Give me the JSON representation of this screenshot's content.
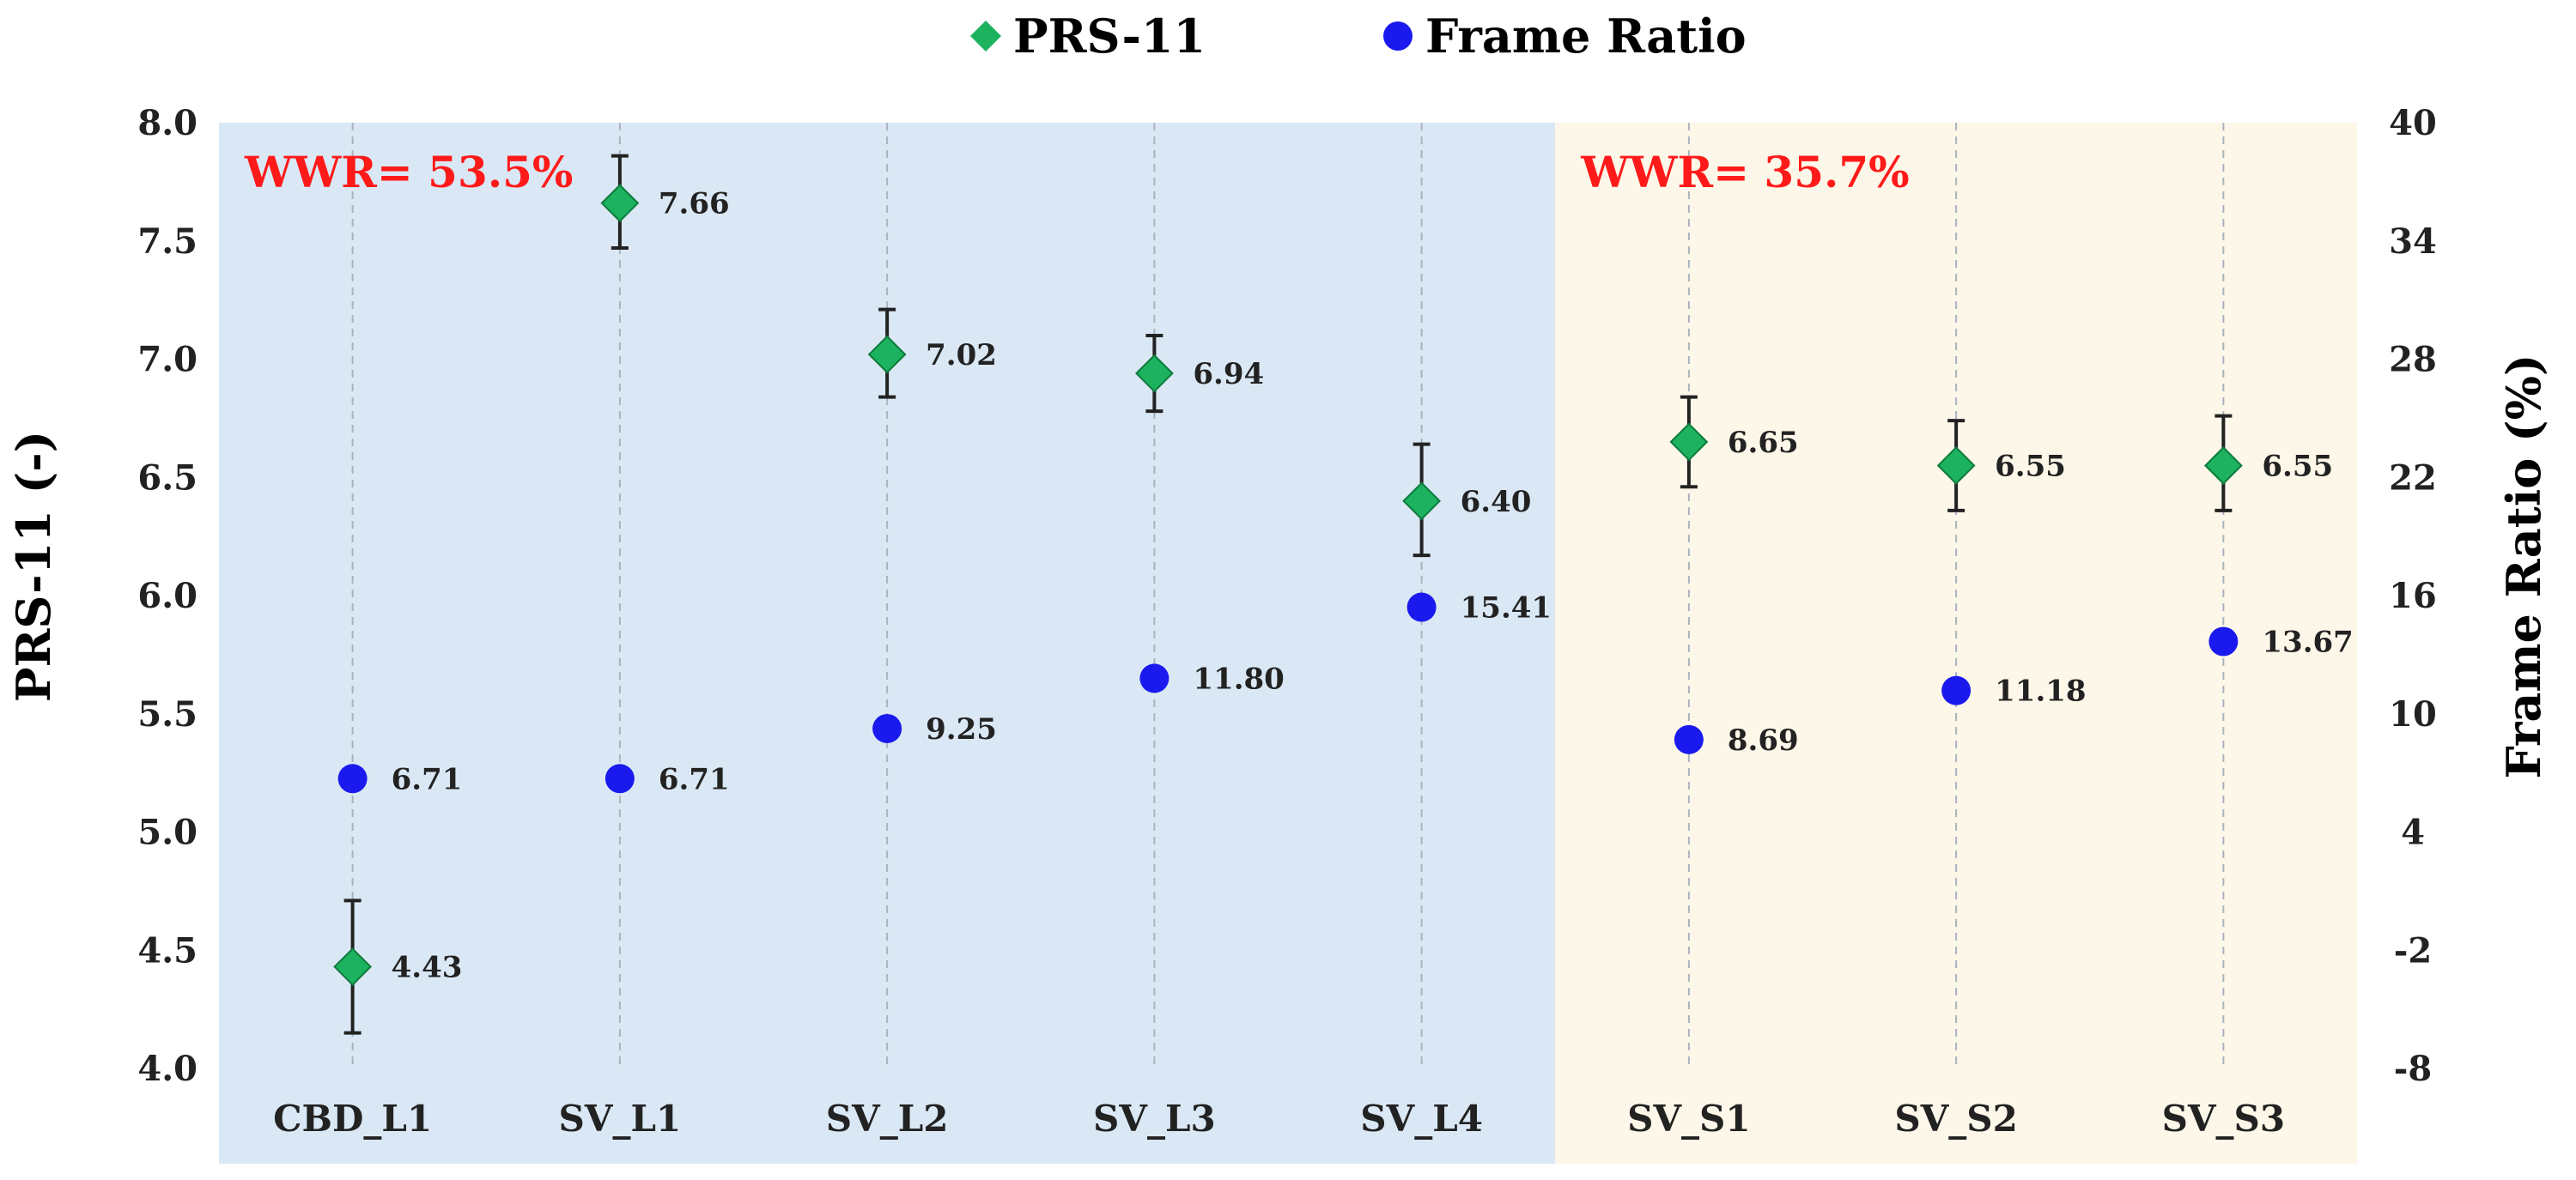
{
  "chart_data": {
    "type": "scatter",
    "categories": [
      "CBD_L1",
      "SV_L1",
      "SV_L2",
      "SV_L3",
      "SV_L4",
      "SV_S1",
      "SV_S2",
      "SV_S3"
    ],
    "series": [
      {
        "name": "PRS-11",
        "axis": "left",
        "marker": "diamond",
        "color": "#1db25f",
        "values": [
          4.43,
          7.66,
          7.02,
          6.94,
          6.4,
          6.65,
          6.55,
          6.55
        ],
        "labels": [
          "4.43",
          "7.66",
          "7.02",
          "6.94",
          "6.40",
          "6.65",
          "6.55",
          "6.55"
        ],
        "error_low": [
          4.15,
          7.47,
          6.84,
          6.78,
          6.17,
          6.46,
          6.36,
          6.36
        ],
        "error_high": [
          4.71,
          7.86,
          7.21,
          7.1,
          6.64,
          6.84,
          6.74,
          6.76
        ]
      },
      {
        "name": "Frame Ratio",
        "axis": "right",
        "marker": "circle",
        "color": "#1a1aee",
        "values": [
          6.71,
          6.71,
          9.25,
          11.8,
          15.41,
          8.69,
          11.18,
          13.67
        ],
        "labels": [
          "6.71",
          "6.71",
          "9.25",
          "11.80",
          "15.41",
          "8.69",
          "11.18",
          "13.67"
        ]
      }
    ],
    "y_left": {
      "label": "PRS-11 (-)",
      "range": [
        4.0,
        8.0
      ],
      "ticks": [
        "4.0",
        "4.5",
        "5.0",
        "5.5",
        "6.0",
        "6.5",
        "7.0",
        "7.5",
        "8.0"
      ]
    },
    "y_right": {
      "label": "Frame Ratio (%)",
      "range": [
        -8,
        40
      ],
      "ticks": [
        "-8",
        "-2",
        "4",
        "10",
        "16",
        "22",
        "28",
        "34",
        "40"
      ]
    },
    "regions": [
      {
        "label": "WWR= 53.5%",
        "from": "CBD_L1",
        "to": "SV_L4",
        "color": "#dae8f5"
      },
      {
        "label": "WWR= 35.7%",
        "from": "SV_S1",
        "to": "SV_S3",
        "color": "#fdf7e9"
      }
    ],
    "annotation_color": "#ff1a1a",
    "grid": "vertical-dashed",
    "legend_position": "top-center"
  }
}
